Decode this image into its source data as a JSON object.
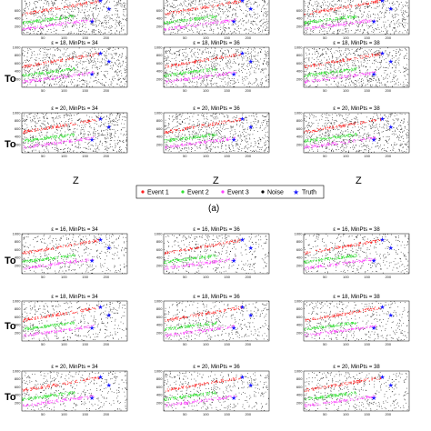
{
  "figure": {
    "subfigure_label": "(a)",
    "ylabel": "To",
    "xlabel": "Z",
    "legend": [
      {
        "name": "Event 1",
        "color": "#ff2020",
        "marker": "dot"
      },
      {
        "name": "Event 2",
        "color": "#30e030",
        "marker": "dot"
      },
      {
        "name": "Event 3",
        "color": "#ff40ff",
        "marker": "dot"
      },
      {
        "name": "Noise",
        "color": "#000000",
        "marker": "dot"
      },
      {
        "name": "Truth",
        "color": "#1a1aff",
        "marker": "star"
      }
    ],
    "colors": {
      "event1": "#ff2020",
      "event2": "#30e030",
      "event3": "#ff40ff",
      "noise": "#000000",
      "truth": "#1a1aff"
    }
  },
  "chart_data": {
    "type": "scatter",
    "xlim": [
      0,
      250
    ],
    "ylim": [
      0,
      1000
    ],
    "xticks": [
      50,
      100,
      150,
      200
    ],
    "yticks": [
      200,
      400,
      600,
      800,
      1000
    ],
    "events": [
      {
        "name": "Event 1",
        "x0": 0,
        "y0": 520,
        "x1": 185,
        "y1": 850
      },
      {
        "name": "Event 2",
        "x0": 0,
        "y0": 300,
        "x1": 125,
        "y1": 470
      },
      {
        "name": "Event 3",
        "x0": 0,
        "y0": 140,
        "x1": 170,
        "y1": 380
      }
    ],
    "truth_points": [
      [
        185,
        850
      ],
      [
        205,
        650
      ],
      [
        165,
        330
      ]
    ],
    "groups": [
      {
        "rows": [
          {
            "titles": [
              "ε = 16, MinPts = 34",
              "ε = 16, MinPts = 36",
              "ε = 16, MinPts = 38"
            ]
          },
          {
            "titles": [
              "ε = 18, MinPts = 34",
              "ε = 18, MinPts = 36",
              "ε = 18, MinPts = 38"
            ]
          },
          {
            "titles": [
              "ε = 20, MinPts = 34",
              "ε = 20, MinPts = 36",
              "ε = 20, MinPts = 38"
            ]
          }
        ]
      },
      {
        "rows": [
          {
            "titles": [
              "ε = 16, MinPts = 34",
              "ε = 16, MinPts = 36",
              "ε = 16, MinPts = 38"
            ]
          },
          {
            "titles": [
              "ε = 18, MinPts = 34",
              "ε = 18, MinPts = 36",
              "ε = 18, MinPts = 38"
            ]
          },
          {
            "titles": [
              "ε = 20, MinPts = 34",
              "ε = 20, MinPts = 36",
              "ε = 20, MinPts = 38"
            ]
          }
        ]
      }
    ]
  }
}
